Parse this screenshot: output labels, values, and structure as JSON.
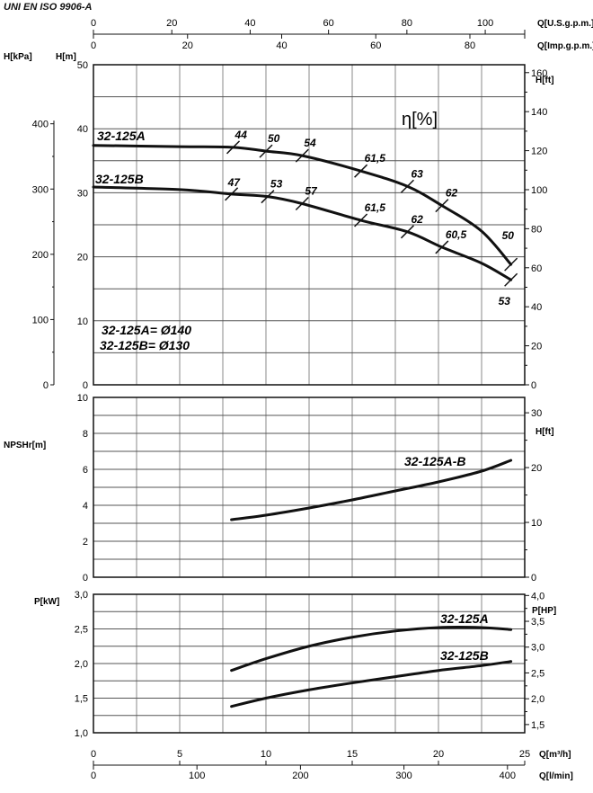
{
  "standard": "UNI EN ISO 9906-A",
  "chart_data": [
    {
      "type": "line",
      "panel": "head",
      "xlabel": "Q[m³/h]",
      "xlim": [
        0,
        25
      ],
      "ylabel": "H[m]",
      "ylim": [
        0,
        50
      ],
      "ylabel_left_secondary": "H[kPa]",
      "ylim_left_secondary": [
        0,
        400
      ],
      "ylabel_right": "H[ft]",
      "ylim_right": [
        0,
        160
      ],
      "top_axes": [
        {
          "label": "Q[U.S.g.p.m.]",
          "ticks": [
            0,
            20,
            40,
            60,
            80,
            100
          ]
        },
        {
          "label": "Q[Imp.g.p.m.]",
          "ticks": [
            0,
            20,
            40,
            60,
            80
          ]
        }
      ],
      "efficiency_label": "η[%]",
      "legend_note": [
        "32-125A= Ø140",
        "32-125B= Ø130"
      ],
      "grid": true,
      "series": [
        {
          "name": "32-125A",
          "x": [
            0,
            5,
            8.1,
            10,
            12.1,
            15.5,
            18.2,
            20.2,
            22.5,
            24.2
          ],
          "y": [
            37.4,
            37.2,
            37.1,
            36.5,
            35.8,
            33.4,
            31.0,
            28.0,
            24.0,
            18.8
          ],
          "efficiency": {
            "x": [
              8.1,
              10,
              12.1,
              15.5,
              18.2,
              20.2,
              24.2
            ],
            "labels": [
              "44",
              "50",
              "54",
              "61,5",
              "63",
              "62",
              "50"
            ]
          }
        },
        {
          "name": "32-125B",
          "x": [
            0,
            5,
            8,
            10.1,
            12.1,
            15.5,
            18.2,
            20.2,
            22.5,
            24.2
          ],
          "y": [
            30.9,
            30.5,
            29.8,
            29.4,
            28.3,
            25.7,
            23.9,
            21.5,
            19.0,
            16.4
          ],
          "efficiency": {
            "x": [
              8,
              10.1,
              12.1,
              15.5,
              18.2,
              20.2,
              24.2
            ],
            "labels": [
              "47",
              "53",
              "57",
              "61,5",
              "62",
              "60,5",
              "53"
            ]
          }
        }
      ]
    },
    {
      "type": "line",
      "panel": "npsh",
      "xlim": [
        0,
        25
      ],
      "ylabel": "NPSHr[m]",
      "ylim": [
        0,
        10
      ],
      "ylabel_right": "H[ft]",
      "ylim_right": [
        0,
        30
      ],
      "grid": true,
      "series": [
        {
          "name": "32-125A-B",
          "x": [
            8,
            10,
            12.5,
            15,
            17.5,
            20,
            22.5,
            24.2
          ],
          "y": [
            3.2,
            3.45,
            3.85,
            4.3,
            4.8,
            5.3,
            5.9,
            6.5
          ]
        }
      ]
    },
    {
      "type": "line",
      "panel": "power",
      "xlim": [
        0,
        25
      ],
      "ylabel": "P[kW]",
      "ylim": [
        1.0,
        3.0
      ],
      "ylabel_right": "P[HP]",
      "ylim_right": [
        1.5,
        4.0
      ],
      "grid": true,
      "bottom_axes": [
        {
          "label": "Q[m³/h]",
          "ticks": [
            0,
            5,
            10,
            15,
            20,
            25
          ]
        },
        {
          "label": "Q[l/min]",
          "ticks": [
            0,
            100,
            200,
            300,
            400
          ]
        }
      ],
      "series": [
        {
          "name": "32-125A",
          "x": [
            8,
            10,
            12.5,
            15,
            17.5,
            20,
            22.5,
            24.2
          ],
          "y": [
            1.9,
            2.07,
            2.25,
            2.38,
            2.47,
            2.52,
            2.52,
            2.49
          ]
        },
        {
          "name": "32-125B",
          "x": [
            8,
            10,
            12.5,
            15,
            17.5,
            20,
            22.5,
            24.2
          ],
          "y": [
            1.38,
            1.5,
            1.62,
            1.72,
            1.81,
            1.9,
            1.97,
            2.03
          ]
        }
      ]
    }
  ]
}
